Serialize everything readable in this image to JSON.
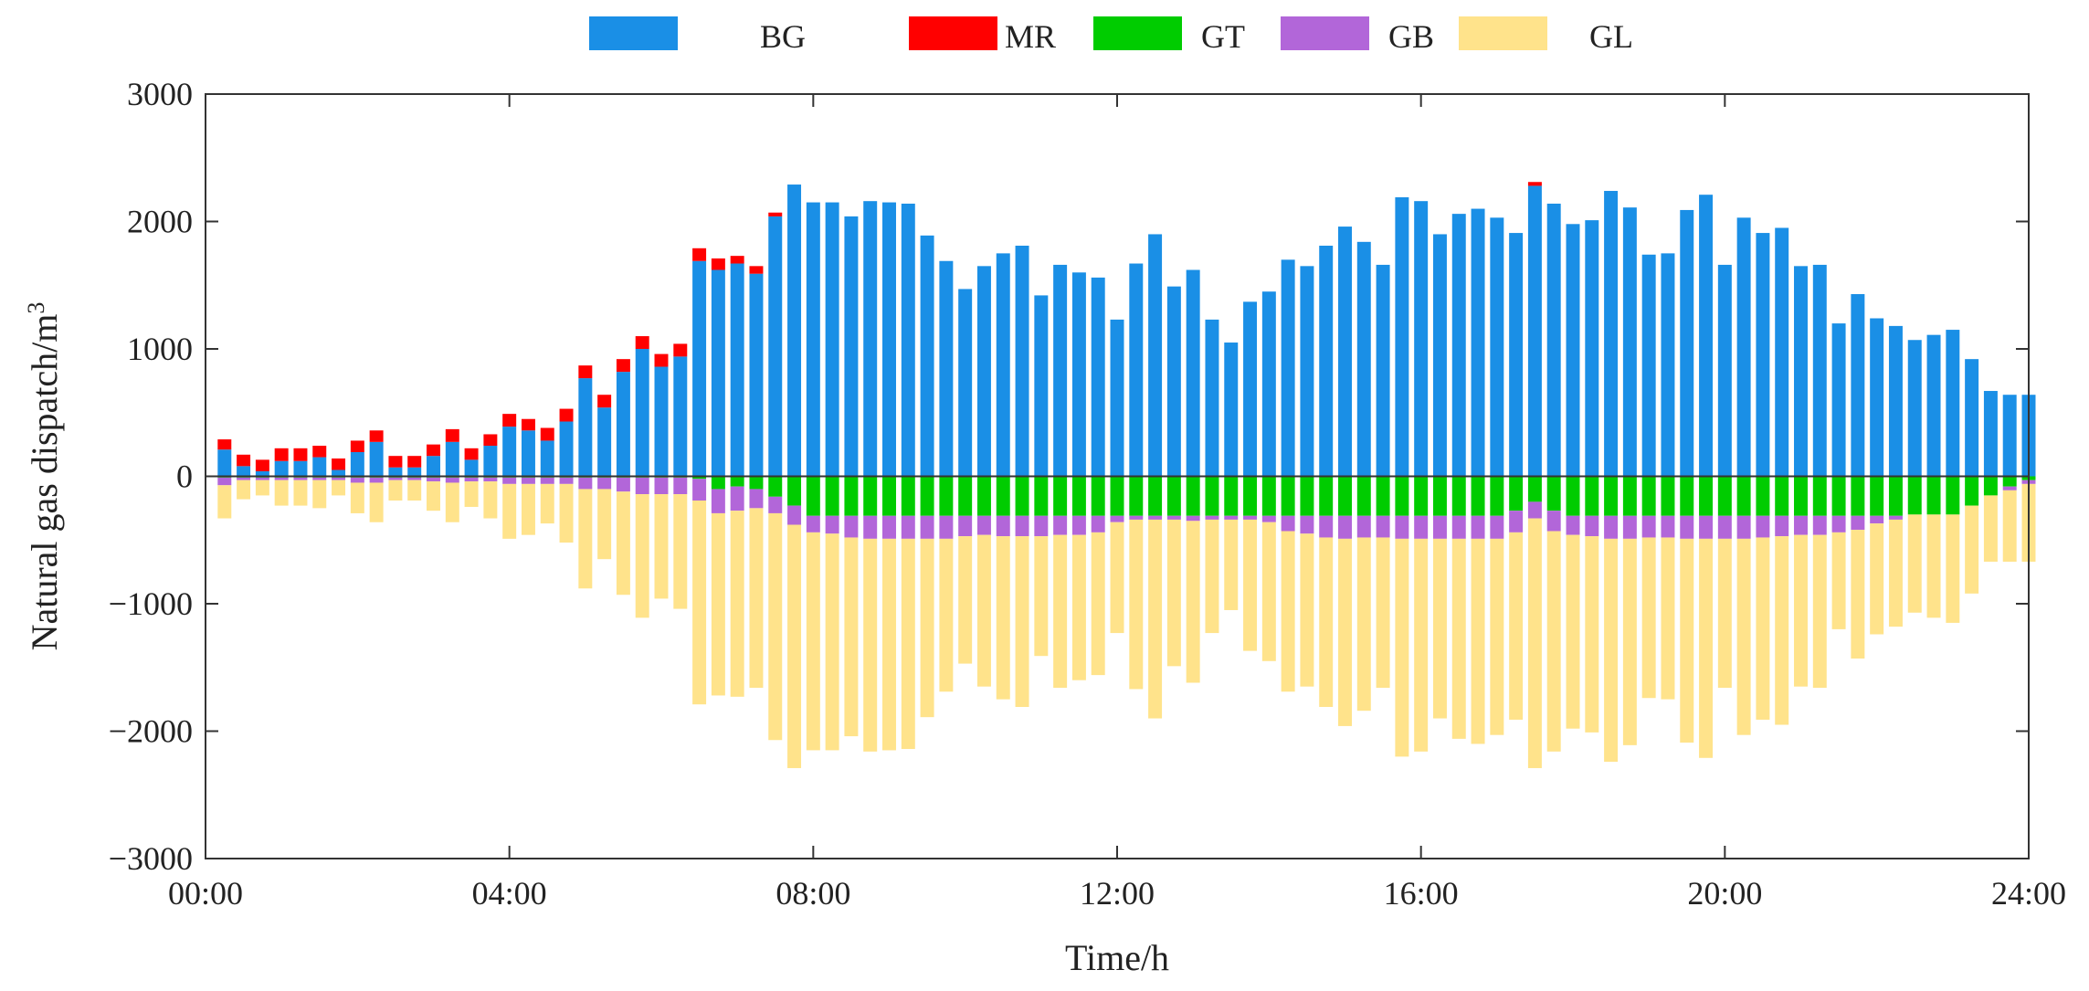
{
  "chart_data": {
    "type": "bar",
    "stacked": true,
    "title": "",
    "xlabel": "Time/h",
    "ylabel": "Natural gas dispatch/m",
    "ylabel_superscript": "3",
    "ylim": [
      -3000,
      3000
    ],
    "xlim_hours": [
      0,
      24
    ],
    "yticks": [
      3000,
      2000,
      1000,
      0,
      -1000,
      -2000,
      -3000
    ],
    "ytick_labels": [
      "3000",
      "2000",
      "1000",
      "0",
      "−1000",
      "−2000",
      "−3000"
    ],
    "xticks_hours": [
      0,
      4,
      8,
      12,
      16,
      20,
      24
    ],
    "xtick_labels": [
      "00:00",
      "04:00",
      "08:00",
      "12:00",
      "16:00",
      "20:00",
      "24:00"
    ],
    "grid": false,
    "legend_position": "top",
    "interval_hours": 0.25,
    "series": [
      {
        "name": "BG",
        "color": "#1A8FE6",
        "values": [
          210,
          80,
          40,
          120,
          120,
          150,
          50,
          190,
          270,
          70,
          70,
          160,
          270,
          130,
          240,
          390,
          360,
          280,
          430,
          770,
          540,
          820,
          1000,
          860,
          940,
          1690,
          1620,
          1670,
          1590,
          2040,
          2290,
          2150,
          2150,
          2040,
          2160,
          2150,
          2140,
          1890,
          1690,
          1470,
          1650,
          1750,
          1810,
          1420,
          1660,
          1600,
          1560,
          1230,
          1670,
          1900,
          1490,
          1620,
          1230,
          1050,
          1370,
          1450,
          1700,
          1650,
          1810,
          1960,
          1840,
          1660,
          2190,
          2160,
          1900,
          2060,
          2100,
          2030,
          1910,
          2280,
          2140,
          1980,
          2010,
          2240,
          2110,
          1740,
          1750,
          2090,
          2210,
          1660,
          2030,
          1910,
          1950,
          1650,
          1660,
          1200,
          1430,
          1240,
          1180,
          1070,
          1110,
          1150,
          920,
          670,
          640,
          640
        ]
      },
      {
        "name": "MR",
        "color": "#FF0000",
        "values": [
          80,
          90,
          90,
          100,
          100,
          90,
          90,
          90,
          90,
          90,
          90,
          90,
          100,
          90,
          90,
          100,
          90,
          100,
          100,
          100,
          100,
          100,
          100,
          100,
          100,
          100,
          90,
          60,
          60,
          30,
          0,
          0,
          0,
          0,
          0,
          0,
          0,
          0,
          0,
          0,
          0,
          0,
          0,
          0,
          0,
          0,
          0,
          0,
          0,
          0,
          0,
          0,
          0,
          0,
          0,
          0,
          0,
          0,
          0,
          0,
          0,
          0,
          0,
          0,
          0,
          0,
          0,
          0,
          0,
          30,
          0,
          0,
          0,
          0,
          0,
          0,
          0,
          0,
          0,
          0,
          0,
          0,
          0,
          0,
          0,
          0,
          0,
          0,
          0,
          0,
          0,
          0,
          0,
          0,
          0,
          0
        ]
      },
      {
        "name": "GT",
        "color": "#00CC00",
        "values": [
          -10,
          -10,
          -10,
          -10,
          -10,
          -10,
          -10,
          -10,
          -10,
          -10,
          -10,
          -10,
          -10,
          -10,
          -10,
          -10,
          -10,
          -10,
          -10,
          -10,
          -10,
          -10,
          -10,
          -10,
          -10,
          -20,
          -100,
          -80,
          -100,
          -160,
          -230,
          -310,
          -310,
          -310,
          -310,
          -310,
          -310,
          -310,
          -310,
          -310,
          -310,
          -310,
          -310,
          -310,
          -310,
          -310,
          -310,
          -310,
          -310,
          -310,
          -310,
          -310,
          -310,
          -310,
          -310,
          -310,
          -310,
          -310,
          -310,
          -310,
          -310,
          -310,
          -310,
          -310,
          -310,
          -310,
          -310,
          -310,
          -270,
          -200,
          -270,
          -310,
          -310,
          -310,
          -310,
          -310,
          -310,
          -310,
          -310,
          -310,
          -310,
          -310,
          -310,
          -310,
          -310,
          -310,
          -310,
          -310,
          -310,
          -300,
          -300,
          -300,
          -230,
          -150,
          -80,
          -30
        ]
      },
      {
        "name": "GB",
        "color": "#B266D9",
        "values": [
          -60,
          -20,
          -20,
          -20,
          -20,
          -20,
          -20,
          -40,
          -40,
          -20,
          -20,
          -30,
          -40,
          -30,
          -30,
          -50,
          -50,
          -50,
          -50,
          -90,
          -90,
          -110,
          -130,
          -130,
          -130,
          -170,
          -190,
          -190,
          -150,
          -130,
          -150,
          -130,
          -140,
          -170,
          -180,
          -180,
          -180,
          -180,
          -180,
          -160,
          -150,
          -160,
          -160,
          -160,
          -150,
          -150,
          -130,
          -50,
          -30,
          -30,
          -30,
          -40,
          -30,
          -30,
          -30,
          -50,
          -120,
          -140,
          -170,
          -180,
          -170,
          -170,
          -180,
          -180,
          -180,
          -180,
          -180,
          -180,
          -170,
          -130,
          -160,
          -150,
          -160,
          -180,
          -180,
          -170,
          -170,
          -180,
          -180,
          -180,
          -180,
          -170,
          -160,
          -150,
          -150,
          -130,
          -110,
          -60,
          -30,
          0,
          0,
          0,
          0,
          0,
          -30,
          -30
        ]
      },
      {
        "name": "GL",
        "color": "#FFE38B",
        "values": [
          -260,
          -150,
          -120,
          -200,
          -200,
          -220,
          -120,
          -240,
          -310,
          -160,
          -160,
          -230,
          -310,
          -200,
          -290,
          -430,
          -400,
          -310,
          -460,
          -780,
          -550,
          -810,
          -970,
          -820,
          -900,
          -1600,
          -1430,
          -1460,
          -1410,
          -1780,
          -1910,
          -1710,
          -1700,
          -1560,
          -1670,
          -1660,
          -1650,
          -1400,
          -1200,
          -1000,
          -1190,
          -1280,
          -1340,
          -940,
          -1200,
          -1140,
          -1120,
          -870,
          -1330,
          -1560,
          -1150,
          -1270,
          -890,
          -710,
          -1030,
          -1090,
          -1260,
          -1200,
          -1330,
          -1470,
          -1360,
          -1180,
          -1710,
          -1670,
          -1410,
          -1570,
          -1610,
          -1540,
          -1470,
          -1960,
          -1730,
          -1520,
          -1540,
          -1750,
          -1620,
          -1260,
          -1270,
          -1600,
          -1720,
          -1170,
          -1540,
          -1430,
          -1480,
          -1190,
          -1200,
          -760,
          -1010,
          -870,
          -840,
          -770,
          -810,
          -850,
          -690,
          -520,
          -560,
          -610
        ]
      }
    ]
  }
}
